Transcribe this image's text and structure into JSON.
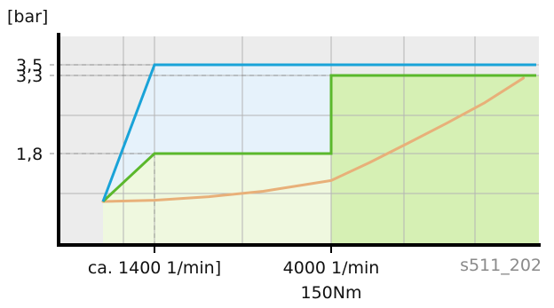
{
  "chart_data": {
    "type": "line",
    "ylabel": "[bar]",
    "image_code": "s511_202",
    "y_ticks": [
      "3,5",
      "3,3",
      "1,8"
    ],
    "x_ticks": [
      "ca. 1400 1/min]",
      "4000 1/min"
    ],
    "x_subtick": "150Nm",
    "series": [
      {
        "color": "#19a3d8",
        "points": [
          [
            0,
            1.0
          ],
          [
            1400,
            3.5
          ],
          [
            12000,
            3.5
          ]
        ]
      },
      {
        "color": "#5bb82c",
        "points": [
          [
            0,
            1.0
          ],
          [
            1400,
            1.8
          ],
          [
            4000,
            1.8
          ],
          [
            4000,
            3.3
          ],
          [
            12000,
            3.3
          ]
        ]
      },
      {
        "color": "#e8b079",
        "points": [
          [
            0,
            1.0
          ],
          [
            1400,
            1.02
          ],
          [
            2200,
            1.08
          ],
          [
            3000,
            1.17
          ],
          [
            4000,
            1.35
          ],
          [
            5500,
            1.65
          ],
          [
            7000,
            2.0
          ],
          [
            8500,
            2.38
          ],
          [
            10000,
            2.78
          ],
          [
            11500,
            3.25
          ]
        ]
      }
    ],
    "colors": {
      "background": "#ececec",
      "blue_fill": "#e6f2fb",
      "light_green_fill": "#eff8df",
      "green_fill": "#d6f0b4",
      "grid": "#b4b4b4",
      "dashed_guides": "#8a8a8a",
      "axis": "#000000"
    },
    "grid": true
  }
}
